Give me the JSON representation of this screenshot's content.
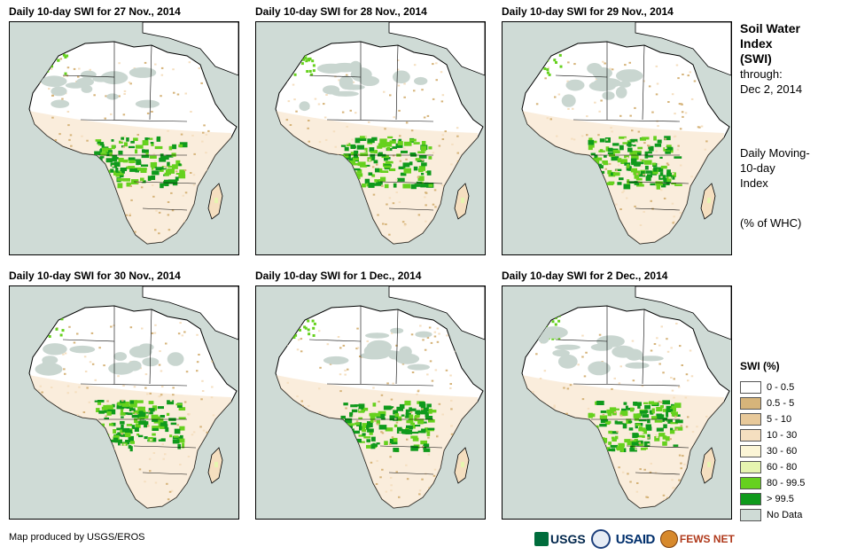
{
  "panels": [
    {
      "title": "Daily 10-day SWI for 27 Nov., 2014"
    },
    {
      "title": "Daily 10-day SWI for 28 Nov., 2014"
    },
    {
      "title": "Daily 10-day SWI for 29 Nov., 2014"
    },
    {
      "title": "Daily 10-day SWI for 30 Nov., 2014"
    },
    {
      "title": "Daily 10-day SWI for 1 Dec., 2014"
    },
    {
      "title": "Daily 10-day SWI for 2 Dec., 2014"
    }
  ],
  "side": {
    "title_lines": [
      "Soil Water",
      "Index",
      "(SWI)"
    ],
    "through_label": "through:",
    "through_date": "Dec 2, 2014",
    "desc_lines": [
      "Daily Moving-",
      "10-day",
      "Index"
    ],
    "unit": "(% of WHC)"
  },
  "legend": {
    "title": "SWI (%)",
    "items": [
      {
        "label": "0 - 0.5",
        "color": "#ffffff"
      },
      {
        "label": "0.5 - 5",
        "color": "#d6b47a"
      },
      {
        "label": "5 - 10",
        "color": "#e8c99a"
      },
      {
        "label": "10 - 30",
        "color": "#f5dfc0"
      },
      {
        "label": "30 - 60",
        "color": "#fbf5d6"
      },
      {
        "label": "60 - 80",
        "color": "#e6f5b0"
      },
      {
        "label": "80 - 99.5",
        "color": "#66d11e"
      },
      {
        "label": "> 99.5",
        "color": "#0f9a1c"
      },
      {
        "label": "No Data",
        "color": "#cfdbd6"
      }
    ]
  },
  "credit": "Map produced by USGS/EROS",
  "logos": {
    "usgs": "USGS",
    "usaid": "USAID",
    "fews": "FEWS NET"
  }
}
